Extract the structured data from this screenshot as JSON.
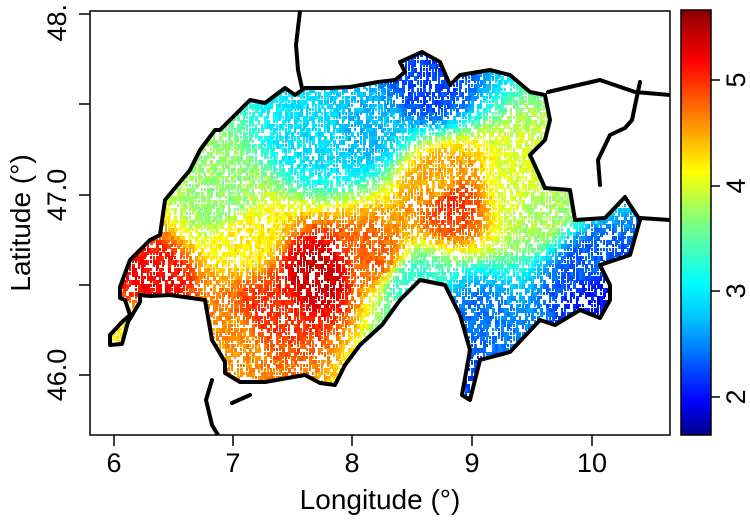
{
  "chart_data": {
    "type": "heatmap",
    "xlabel": "Longitude (°)",
    "ylabel": "Latitude (°)",
    "xlim": [
      5.8,
      10.7
    ],
    "ylim": [
      45.65,
      48.0
    ],
    "x_ticks": [
      "6",
      "7",
      "8",
      "9",
      "10"
    ],
    "y_ticks": [
      "46.0",
      "47.0",
      "48."
    ],
    "colorbar": {
      "range": [
        1.6,
        5.7
      ],
      "ticks": [
        "2",
        "3",
        "4",
        "5"
      ],
      "colors": [
        "#00008b",
        "#0000ff",
        "#00bfff",
        "#00ffff",
        "#7fff7f",
        "#ffff00",
        "#ff7f00",
        "#ff0000",
        "#8b0000"
      ]
    },
    "clusters": [
      {
        "lon": 7.7,
        "lat": 46.55,
        "value": 5.4
      },
      {
        "lon": 7.3,
        "lat": 46.35,
        "value": 5.0
      },
      {
        "lon": 8.2,
        "lat": 46.65,
        "value": 4.8
      },
      {
        "lon": 8.85,
        "lat": 46.95,
        "value": 5.0
      },
      {
        "lon": 8.75,
        "lat": 47.05,
        "value": 4.5
      },
      {
        "lon": 7.1,
        "lat": 46.75,
        "value": 4.2
      },
      {
        "lon": 6.3,
        "lat": 46.5,
        "value": 5.2
      },
      {
        "lon": 6.2,
        "lat": 46.25,
        "value": 4.2
      },
      {
        "lon": 9.4,
        "lat": 47.05,
        "value": 4.0
      },
      {
        "lon": 9.6,
        "lat": 46.9,
        "value": 3.8
      },
      {
        "lon": 7.7,
        "lat": 47.3,
        "value": 2.9
      },
      {
        "lon": 8.1,
        "lat": 47.35,
        "value": 2.7
      },
      {
        "lon": 8.65,
        "lat": 47.6,
        "value": 2.2
      },
      {
        "lon": 10.0,
        "lat": 46.6,
        "value": 2.3
      },
      {
        "lon": 10.1,
        "lat": 46.45,
        "value": 2.0
      },
      {
        "lon": 9.0,
        "lat": 46.3,
        "value": 2.4
      },
      {
        "lon": 8.8,
        "lat": 46.05,
        "value": 2.2
      },
      {
        "lon": 8.5,
        "lat": 46.5,
        "value": 3.3
      },
      {
        "lon": 7.0,
        "lat": 46.2,
        "value": 4.6
      },
      {
        "lon": 6.9,
        "lat": 46.95,
        "value": 3.7
      }
    ]
  }
}
